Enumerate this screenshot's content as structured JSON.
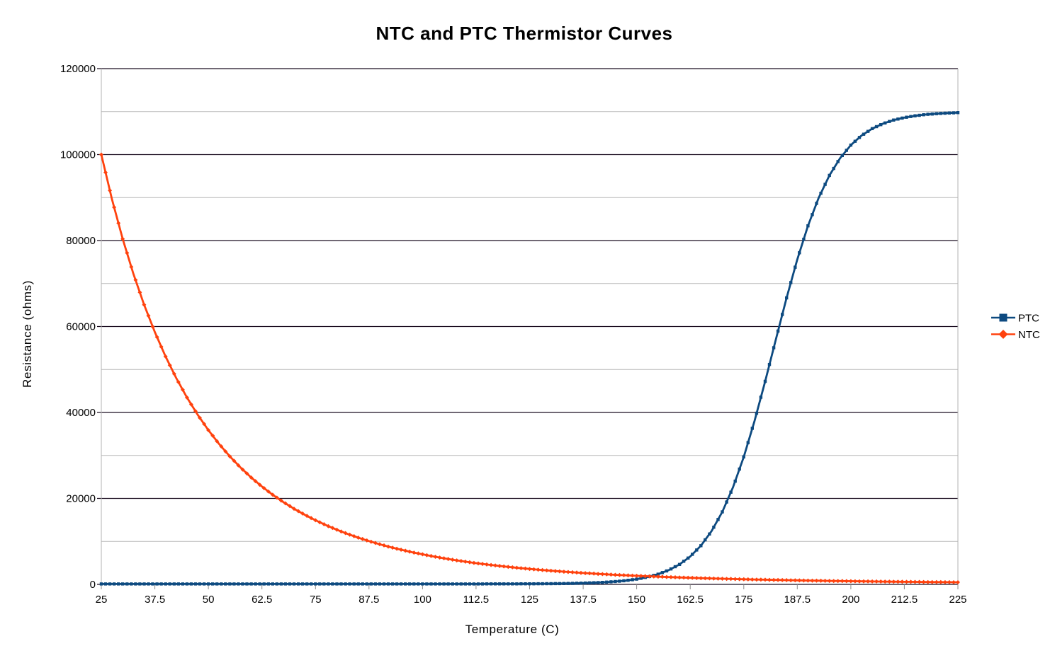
{
  "chart_data": {
    "type": "line",
    "title": "NTC and PTC Thermistor Curves",
    "xlabel": "Temperature (C)",
    "ylabel": "Resistance (ohms)",
    "xlim": [
      25,
      225
    ],
    "ylim": [
      0,
      120000
    ],
    "grid": {
      "horizontal_major": true,
      "horizontal_minor": true,
      "vertical": false
    },
    "legend_position": "right",
    "colors": {
      "major_grid": "#1b0d20",
      "minor_grid": "#b9b9b9",
      "axis_border": "#b3b3b3",
      "tick": "#8c8c8c",
      "text": "#000000",
      "background": "#ffffff"
    },
    "x_axis": {
      "ticks": [
        25,
        37.5,
        50,
        62.5,
        75,
        87.5,
        100,
        112.5,
        125,
        137.5,
        150,
        162.5,
        175,
        187.5,
        200,
        212.5,
        225
      ],
      "tick_labels": [
        "25",
        "37.5",
        "50",
        "62.5",
        "75",
        "87.5",
        "100",
        "112.5",
        "125",
        "137.5",
        "150",
        "162.5",
        "175",
        "187.5",
        "200",
        "212.5",
        "225"
      ]
    },
    "y_axis": {
      "major_ticks": [
        0,
        20000,
        40000,
        60000,
        80000,
        100000,
        120000
      ],
      "tick_labels": [
        "0",
        "20000",
        "40000",
        "60000",
        "80000",
        "100000",
        "120000"
      ],
      "minor_ticks": [
        10000,
        30000,
        50000,
        70000,
        90000,
        110000
      ]
    },
    "x": [
      25,
      27.5,
      30,
      32.5,
      35,
      37.5,
      40,
      42.5,
      45,
      47.5,
      50,
      52.5,
      55,
      57.5,
      60,
      62.5,
      65,
      67.5,
      70,
      72.5,
      75,
      77.5,
      80,
      82.5,
      85,
      87.5,
      90,
      92.5,
      95,
      97.5,
      100,
      102.5,
      105,
      107.5,
      110,
      112.5,
      115,
      117.5,
      120,
      122.5,
      125,
      127.5,
      130,
      132.5,
      135,
      137.5,
      140,
      142.5,
      145,
      147.5,
      150,
      152.5,
      155,
      157.5,
      160,
      162.5,
      165,
      167.5,
      170,
      172.5,
      175,
      177.5,
      180,
      182.5,
      185,
      187.5,
      190,
      192.5,
      195,
      197.5,
      200,
      202.5,
      205,
      207.5,
      210,
      212.5,
      215,
      217.5,
      220,
      222.5,
      225
    ],
    "series": [
      {
        "name": "PTC",
        "color": "#0d4a80",
        "marker": "square",
        "values": [
          100,
          100,
          100,
          100,
          100,
          100,
          100,
          100,
          100,
          100,
          100,
          100,
          100,
          100,
          100,
          100,
          100,
          100,
          100,
          100,
          100,
          100,
          100,
          100,
          100,
          100,
          100,
          100,
          100,
          100,
          100,
          101,
          102,
          103,
          104,
          105,
          107,
          111,
          116,
          122,
          132,
          146,
          165,
          193,
          233,
          290,
          372,
          488,
          653,
          890,
          1225,
          1700,
          2375,
          3325,
          4640,
          6490,
          9000,
          12410,
          16880,
          22600,
          29660,
          37970,
          47250,
          57010,
          66650,
          75590,
          83430,
          89950,
          95160,
          99180,
          102200,
          104420,
          106040,
          107200,
          108030,
          108610,
          109020,
          109320,
          109520,
          109660,
          109760
        ]
      },
      {
        "name": "NTC",
        "color": "#ff420e",
        "marker": "diamond",
        "values": [
          100000,
          89570,
          80370,
          72250,
          65060,
          58680,
          53020,
          47980,
          43480,
          39470,
          35880,
          32670,
          29780,
          27190,
          24860,
          22760,
          20860,
          19150,
          17600,
          16200,
          14920,
          13760,
          12700,
          11740,
          10870,
          10070,
          9340,
          8660,
          8060,
          7490,
          6990,
          6500,
          6070,
          5660,
          5290,
          4940,
          4630,
          4340,
          4070,
          3820,
          3590,
          3370,
          3170,
          2990,
          2810,
          2650,
          2500,
          2360,
          2230,
          2110,
          2000,
          1890,
          1790,
          1700,
          1610,
          1530,
          1450,
          1380,
          1310,
          1250,
          1190,
          1130,
          1080,
          1030,
          980,
          935,
          890,
          850,
          810,
          780,
          740,
          710,
          680,
          650,
          630,
          600,
          580,
          550,
          530,
          510,
          490
        ]
      }
    ]
  }
}
